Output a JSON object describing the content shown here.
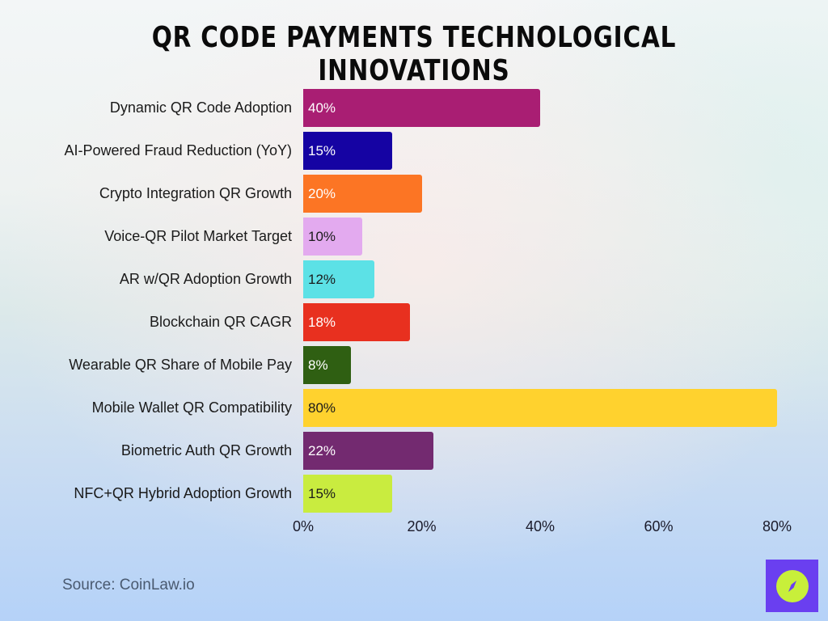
{
  "title": "QR Code Payments Technological Innovations",
  "source": "Source: CoinLaw.io",
  "logo": {
    "icon": "compass-icon",
    "bg_color": "#6a3ff0",
    "circle_color": "#c8ef3a"
  },
  "axis": {
    "ticks": [
      "0%",
      "20%",
      "40%",
      "60%",
      "80%"
    ],
    "tick_values": [
      0,
      20,
      40,
      60,
      80
    ]
  },
  "bars": [
    {
      "label": "Dynamic QR Code Adoption",
      "value": 40,
      "display": "40%",
      "color": "#a91e73",
      "text_color": "#ffffff"
    },
    {
      "label": "AI-Powered Fraud Reduction (YoY)",
      "value": 15,
      "display": "15%",
      "color": "#1503a3",
      "text_color": "#ffffff"
    },
    {
      "label": "Crypto Integration QR Growth",
      "value": 20,
      "display": "20%",
      "color": "#fc7524",
      "text_color": "#ffffff"
    },
    {
      "label": "Voice-QR Pilot Market Target",
      "value": 10,
      "display": "10%",
      "color": "#e3aaef",
      "text_color": "#1a1a1a"
    },
    {
      "label": "AR w/QR Adoption Growth",
      "value": 12,
      "display": "12%",
      "color": "#5ce1e6",
      "text_color": "#1a1a1a"
    },
    {
      "label": "Blockchain QR CAGR",
      "value": 18,
      "display": "18%",
      "color": "#e8301f",
      "text_color": "#ffffff"
    },
    {
      "label": "Wearable QR Share of Mobile Pay",
      "value": 8,
      "display": "8%",
      "color": "#2f5f12",
      "text_color": "#ffffff"
    },
    {
      "label": "Mobile Wallet QR Compatibility",
      "value": 80,
      "display": "80%",
      "color": "#ffd22e",
      "text_color": "#1a1a1a"
    },
    {
      "label": "Biometric Auth QR Growth",
      "value": 22,
      "display": "22%",
      "color": "#732a70",
      "text_color": "#ffffff"
    },
    {
      "label": "NFC+QR Hybrid Adoption Growth",
      "value": 15,
      "display": "15%",
      "color": "#c9ec3f",
      "text_color": "#1a1a1a"
    }
  ],
  "chart_data": {
    "type": "bar",
    "orientation": "horizontal",
    "title": "QR Code Payments Technological Innovations",
    "categories": [
      "Dynamic QR Code Adoption",
      "AI-Powered Fraud Reduction (YoY)",
      "Crypto Integration QR Growth",
      "Voice-QR Pilot Market Target",
      "AR w/QR Adoption Growth",
      "Blockchain QR CAGR",
      "Wearable QR Share of Mobile Pay",
      "Mobile Wallet QR Compatibility",
      "Biometric Auth QR Growth",
      "NFC+QR Hybrid Adoption Growth"
    ],
    "values": [
      40,
      15,
      20,
      10,
      12,
      18,
      8,
      80,
      22,
      15
    ],
    "data_labels": [
      "40%",
      "15%",
      "20%",
      "10%",
      "12%",
      "18%",
      "8%",
      "80%",
      "22%",
      "15%"
    ],
    "xlabel": "",
    "ylabel": "",
    "xlim": [
      0,
      80
    ],
    "x_ticks": [
      "0%",
      "20%",
      "40%",
      "60%",
      "80%"
    ],
    "grid": false,
    "legend": null,
    "annotations": [
      "Source: CoinLaw.io"
    ]
  }
}
